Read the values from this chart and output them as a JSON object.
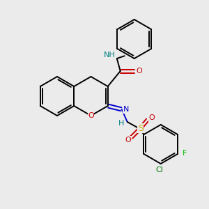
{
  "bg_color": "#ebebeb",
  "bond_color": "#000000",
  "atom_colors": {
    "N": "#0000cc",
    "O": "#cc0000",
    "S": "#ccaa00",
    "F": "#00bb00",
    "Cl": "#007700",
    "NH": "#008080",
    "C": "#000000"
  },
  "figsize": [
    3.0,
    3.0
  ],
  "dpi": 100,
  "lw": 1.4,
  "ring_r": 28,
  "font_size": 8
}
